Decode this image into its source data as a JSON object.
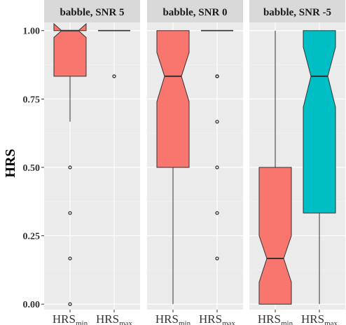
{
  "chart_data": {
    "type": "boxplot",
    "title": "",
    "ylabel": "HRS",
    "xlabel": "",
    "ylim": [
      -0.02,
      1.03
    ],
    "y_ticks": [
      0.0,
      0.25,
      0.5,
      0.75,
      1.0
    ],
    "y_tick_labels": [
      "0.00",
      "0.25",
      "0.50",
      "0.75",
      "1.00"
    ],
    "categories": [
      {
        "main": "HRS",
        "sub": "min"
      },
      {
        "main": "HRS",
        "sub": "max"
      }
    ],
    "colors": {
      "min": "#f8766d",
      "max": "#00bfc4"
    },
    "notched": true,
    "legend": "none",
    "grid": true,
    "panels": [
      {
        "title": "babble, SNR 5",
        "boxes": [
          {
            "category": "min",
            "whisker_low": 0.667,
            "q1": 0.833,
            "median": 1.0,
            "q3": 1.0,
            "whisker_high": 1.0,
            "notch_low": 0.975,
            "notch_high": 1.025,
            "outliers": [
              0.5,
              0.333,
              0.167,
              0.0
            ]
          },
          {
            "category": "max",
            "whisker_low": 1.0,
            "q1": 1.0,
            "median": 1.0,
            "q3": 1.0,
            "whisker_high": 1.0,
            "notch_low": 1.0,
            "notch_high": 1.0,
            "outliers": [
              0.833
            ]
          }
        ]
      },
      {
        "title": "babble, SNR 0",
        "boxes": [
          {
            "category": "min",
            "whisker_low": 0.0,
            "q1": 0.5,
            "median": 0.833,
            "q3": 1.0,
            "whisker_high": 1.0,
            "notch_low": 0.74,
            "notch_high": 0.92,
            "outliers": []
          },
          {
            "category": "max",
            "whisker_low": 1.0,
            "q1": 1.0,
            "median": 1.0,
            "q3": 1.0,
            "whisker_high": 1.0,
            "notch_low": 1.0,
            "notch_high": 1.0,
            "outliers": [
              0.833,
              0.833,
              0.667,
              0.5,
              0.333,
              0.167
            ]
          }
        ]
      },
      {
        "title": "babble, SNR -5",
        "boxes": [
          {
            "category": "min",
            "whisker_low": 0.0,
            "q1": 0.0,
            "median": 0.167,
            "q3": 0.5,
            "whisker_high": 1.0,
            "notch_low": 0.08,
            "notch_high": 0.25,
            "outliers": []
          },
          {
            "category": "max",
            "whisker_low": 0.0,
            "q1": 0.333,
            "median": 0.833,
            "q3": 1.0,
            "whisker_high": 1.0,
            "notch_low": 0.72,
            "notch_high": 0.94,
            "outliers": []
          }
        ]
      }
    ]
  }
}
